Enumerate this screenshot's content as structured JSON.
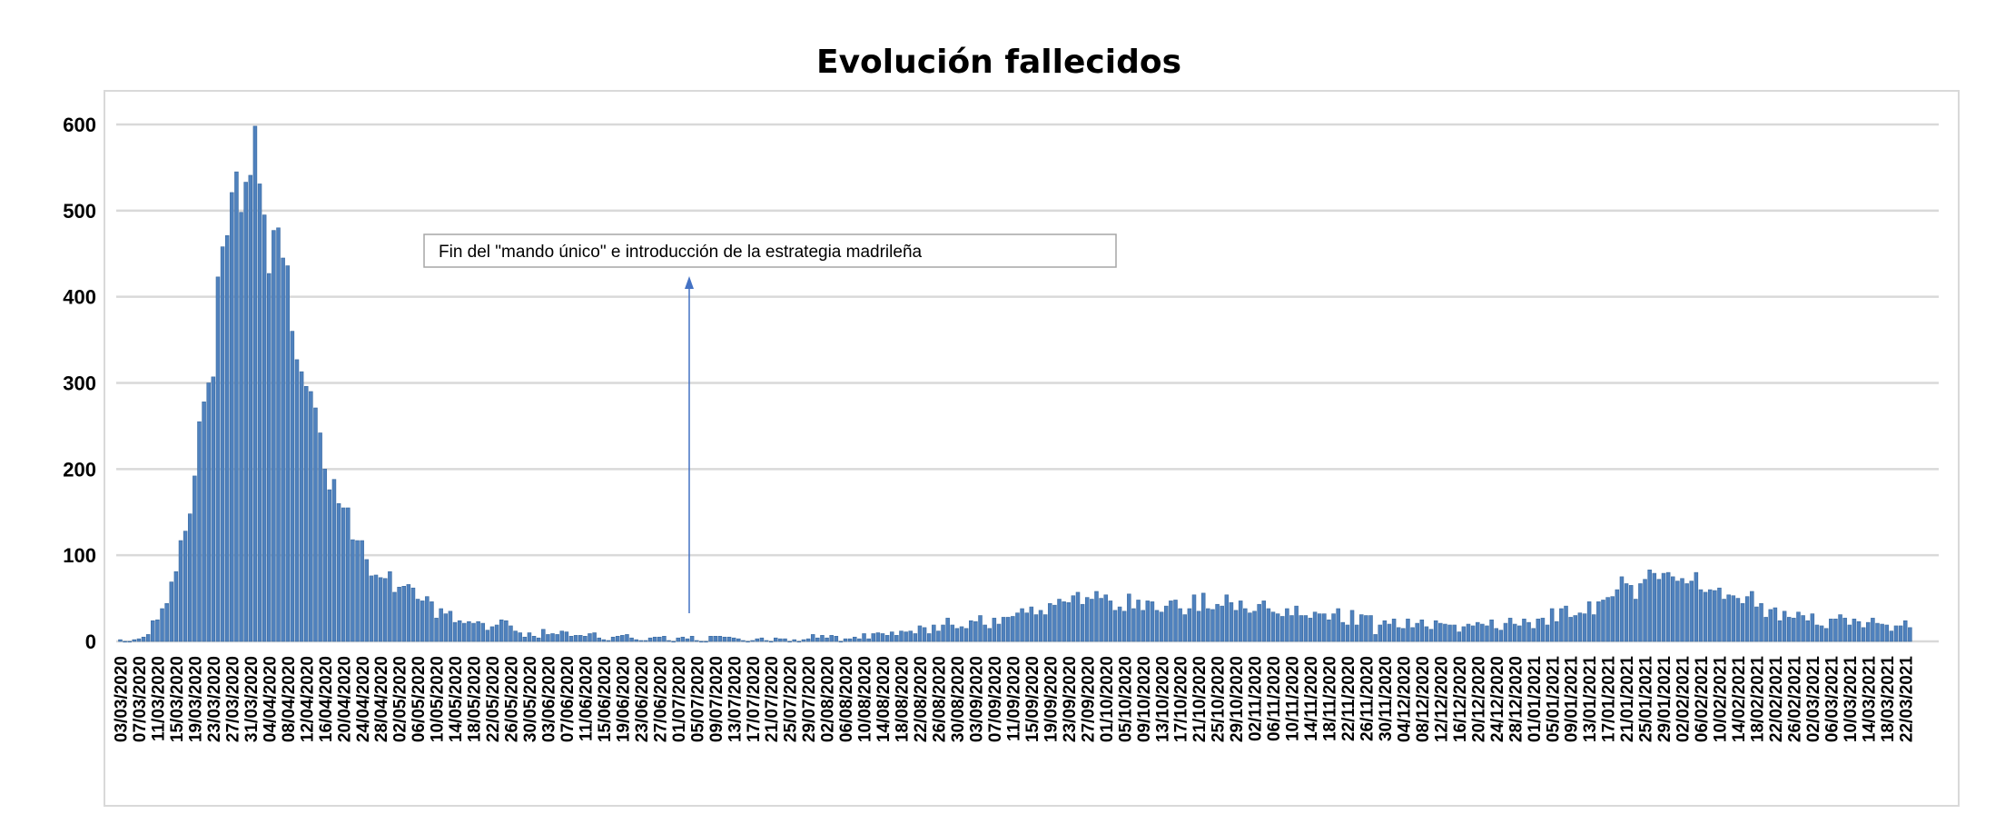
{
  "chart_data": {
    "type": "bar",
    "title": "Evolución fallecidos",
    "xlabel": "",
    "ylabel": "",
    "ylim": [
      0,
      600
    ],
    "y_ticks": [
      0,
      100,
      200,
      300,
      400,
      500,
      600
    ],
    "grid": true,
    "legend": "none",
    "bar_color": "#4f81bd",
    "x_tick_every_n_days": 4,
    "x_tick_labels": [
      "03/03/2020",
      "07/03/2020",
      "11/03/2020",
      "15/03/2020",
      "19/03/2020",
      "23/03/2020",
      "27/03/2020",
      "31/03/2020",
      "04/04/2020",
      "08/04/2020",
      "12/04/2020",
      "16/04/2020",
      "20/04/2020",
      "24/04/2020",
      "28/04/2020",
      "02/05/2020",
      "06/05/2020",
      "10/05/2020",
      "14/05/2020",
      "18/05/2020",
      "22/05/2020",
      "26/05/2020",
      "30/05/2020",
      "03/06/2020",
      "07/06/2020",
      "11/06/2020",
      "15/06/2020",
      "19/06/2020",
      "23/06/2020",
      "27/06/2020",
      "01/07/2020",
      "05/07/2020",
      "09/07/2020",
      "13/07/2020",
      "17/07/2020",
      "21/07/2020",
      "25/07/2020",
      "29/07/2020",
      "02/08/2020",
      "06/08/2020",
      "10/08/2020",
      "14/08/2020",
      "18/08/2020",
      "22/08/2020",
      "26/08/2020",
      "30/08/2020",
      "03/09/2020",
      "07/09/2020",
      "11/09/2020",
      "15/09/2020",
      "19/09/2020",
      "23/09/2020",
      "27/09/2020",
      "01/10/2020",
      "05/10/2020",
      "09/10/2020",
      "13/10/2020",
      "17/10/2020",
      "21/10/2020",
      "25/10/2020",
      "29/10/2020",
      "02/11/2020",
      "06/11/2020",
      "10/11/2020",
      "14/11/2020",
      "18/11/2020",
      "22/11/2020",
      "26/11/2020",
      "30/11/2020",
      "04/12/2020",
      "08/12/2020",
      "12/12/2020",
      "16/12/2020",
      "20/12/2020",
      "24/12/2020",
      "28/12/2020",
      "01/01/2021",
      "05/01/2021",
      "09/01/2021",
      "13/01/2021",
      "17/01/2021",
      "21/01/2021",
      "25/01/2021",
      "29/01/2021",
      "02/02/2021",
      "06/02/2021",
      "10/02/2021",
      "14/02/2021",
      "18/02/2021",
      "22/02/2021",
      "26/02/2021",
      "02/03/2021",
      "06/03/2021",
      "10/03/2021",
      "14/03/2021",
      "18/03/2021",
      "22/03/2021"
    ],
    "values": [
      2,
      0,
      0,
      2,
      3,
      5,
      8,
      24,
      25,
      38,
      44,
      69,
      81,
      117,
      128,
      148,
      192,
      255,
      278,
      300,
      307,
      423,
      458,
      471,
      521,
      545,
      498,
      533,
      541,
      598,
      531,
      495,
      427,
      477,
      480,
      445,
      436,
      360,
      327,
      313,
      296,
      290,
      271,
      242,
      200,
      176,
      188,
      160,
      155,
      155,
      118,
      117,
      117,
      95,
      76,
      77,
      74,
      73,
      81,
      57,
      63,
      64,
      66,
      62,
      49,
      47,
      52,
      46,
      27,
      38,
      32,
      35,
      22,
      24,
      21,
      23,
      21,
      23,
      21,
      13,
      17,
      19,
      25,
      24,
      18,
      12,
      10,
      5,
      10,
      6,
      4,
      14,
      8,
      9,
      8,
      12,
      11,
      6,
      7,
      7,
      6,
      9,
      10,
      4,
      2,
      1,
      5,
      6,
      7,
      8,
      4,
      2,
      1,
      1,
      4,
      5,
      5,
      6,
      1,
      0,
      4,
      5,
      3,
      6,
      1,
      0,
      0,
      6,
      6,
      6,
      5,
      5,
      4,
      3,
      1,
      0,
      1,
      3,
      4,
      1,
      0,
      4,
      3,
      3,
      0,
      2,
      0,
      2,
      3,
      8,
      4,
      7,
      4,
      7,
      6,
      0,
      3,
      3,
      5,
      3,
      9,
      3,
      9,
      10,
      9,
      7,
      11,
      7,
      12,
      11,
      12,
      9,
      18,
      16,
      9,
      19,
      12,
      19,
      27,
      19,
      15,
      17,
      15,
      24,
      23,
      30,
      19,
      15,
      27,
      20,
      28,
      28,
      29,
      33,
      38,
      33,
      40,
      31,
      36,
      31,
      44,
      42,
      49,
      46,
      45,
      53,
      57,
      43,
      51,
      49,
      58,
      50,
      54,
      47,
      36,
      40,
      35,
      55,
      38,
      48,
      36,
      47,
      46,
      36,
      34,
      41,
      47,
      48,
      38,
      31,
      38,
      54,
      35,
      56,
      38,
      37,
      43,
      41,
      54,
      45,
      36,
      47,
      38,
      33,
      35,
      43,
      47,
      38,
      34,
      32,
      29,
      38,
      30,
      41,
      30,
      30,
      27,
      34,
      32,
      32,
      25,
      32,
      38,
      22,
      19,
      36,
      19,
      31,
      30,
      30,
      8,
      19,
      24,
      20,
      26,
      16,
      15,
      26,
      16,
      21,
      25,
      17,
      14,
      24,
      21,
      20,
      19,
      19,
      11,
      17,
      20,
      18,
      22,
      20,
      18,
      25,
      15,
      13,
      21,
      27,
      20,
      18,
      26,
      22,
      15,
      26,
      27,
      19,
      38,
      23,
      38,
      41,
      28,
      30,
      33,
      32,
      46,
      31,
      46,
      48,
      51,
      52,
      60,
      75,
      67,
      65,
      49,
      67,
      72,
      83,
      79,
      72,
      79,
      80,
      75,
      70,
      73,
      67,
      70,
      80,
      60,
      57,
      60,
      59,
      62,
      49,
      54,
      53,
      50,
      44,
      52,
      58,
      40,
      44,
      28,
      37,
      39,
      24,
      35,
      28,
      27,
      34,
      30,
      24,
      32,
      19,
      18,
      15,
      26,
      26,
      31,
      27,
      19,
      26,
      23,
      16,
      22,
      27,
      21,
      20,
      19,
      12,
      18,
      18,
      24,
      16
    ],
    "annotation": {
      "text": "Fin del \"mando único\" e introducción de la estrategia madrileña",
      "arrow_points_to": "05/07/2020",
      "arrow_color": "#4472c4"
    }
  }
}
